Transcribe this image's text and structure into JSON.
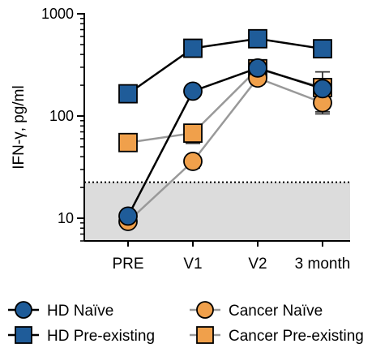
{
  "chart_data": {
    "type": "line",
    "ylabel": "IFN-γ, pg/ml",
    "xlabel": "",
    "y_scale": "log",
    "ylim": [
      6,
      1000
    ],
    "y_ticks": [
      10,
      100,
      1000
    ],
    "y_tick_labels": [
      "10",
      "100",
      "1000"
    ],
    "categories": [
      "PRE",
      "V1",
      "V2",
      "3 month"
    ],
    "grid": false,
    "legend_position": "bottom",
    "threshold": {
      "value": 22.5,
      "style": "dotted",
      "shaded_below": true
    },
    "series": [
      {
        "name": "HD Naïve",
        "marker": "circle",
        "marker_color": "#1f5c99",
        "line_color": "#000000",
        "values": [
          10.5,
          175,
          295,
          185
        ],
        "errors": [
          0.5,
          8,
          25,
          20
        ]
      },
      {
        "name": "HD Pre-existing",
        "marker": "square",
        "marker_color": "#1f5c99",
        "line_color": "#000000",
        "values": [
          165,
          460,
          570,
          455
        ],
        "errors": [
          22,
          25,
          80,
          30
        ]
      },
      {
        "name": "Cancer Naïve",
        "marker": "circle",
        "marker_color": "#f0a04b",
        "line_color": "#999999",
        "values": [
          9.3,
          36,
          235,
          135
        ],
        "errors": [
          0.6,
          5,
          30,
          30
        ]
      },
      {
        "name": "Cancer Pre-existing",
        "marker": "square",
        "marker_color": "#f0a04b",
        "line_color": "#999999",
        "values": [
          55,
          68,
          290,
          190
        ],
        "errors": [
          5,
          14,
          60,
          80
        ]
      }
    ]
  }
}
